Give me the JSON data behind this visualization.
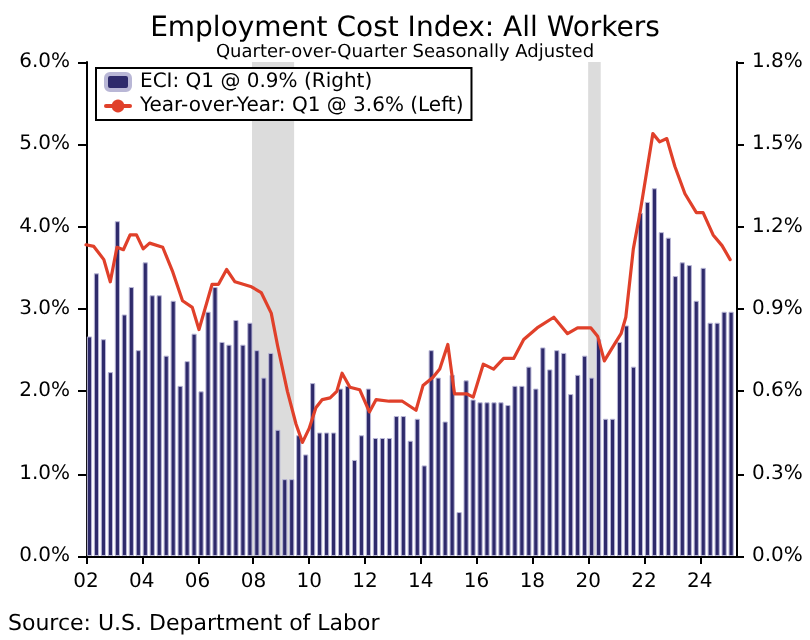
{
  "chart_data": {
    "type": "bar",
    "title": "Employment Cost Index: All Workers",
    "subtitle": "Quarter-over-Quarter Seasonally Adjusted",
    "annotations": [
      "Source: U.S. Department of Labor"
    ],
    "x": [
      2002.125,
      2002.375,
      2002.625,
      2002.875,
      2003.125,
      2003.375,
      2003.625,
      2003.875,
      2004.125,
      2004.375,
      2004.625,
      2004.875,
      2005.125,
      2005.375,
      2005.625,
      2005.875,
      2006.125,
      2006.375,
      2006.625,
      2006.875,
      2007.125,
      2007.375,
      2007.625,
      2007.875,
      2008.125,
      2008.375,
      2008.625,
      2008.875,
      2009.125,
      2009.375,
      2009.625,
      2009.875,
      2010.125,
      2010.375,
      2010.625,
      2010.875,
      2011.125,
      2011.375,
      2011.625,
      2011.875,
      2012.125,
      2012.375,
      2012.625,
      2012.875,
      2013.125,
      2013.375,
      2013.625,
      2013.875,
      2014.125,
      2014.375,
      2014.625,
      2014.875,
      2015.125,
      2015.375,
      2015.625,
      2015.875,
      2016.125,
      2016.375,
      2016.625,
      2016.875,
      2017.125,
      2017.375,
      2017.625,
      2017.875,
      2018.125,
      2018.375,
      2018.625,
      2018.875,
      2019.125,
      2019.375,
      2019.625,
      2019.875,
      2020.125,
      2020.375,
      2020.625,
      2020.875,
      2021.125,
      2021.375,
      2021.625,
      2021.875,
      2022.125,
      2022.375,
      2022.625,
      2022.875,
      2023.125,
      2023.375,
      2023.625,
      2023.875,
      2024.125,
      2024.375,
      2024.625,
      2024.875,
      2025.125
    ],
    "series": [
      {
        "name": "ECI: Q1 @ 0.9% (Right)",
        "axis": "y2",
        "color": "#2e2a6b",
        "values": [
          0.8,
          1.03,
          0.79,
          0.67,
          1.22,
          0.88,
          0.98,
          0.75,
          1.07,
          0.95,
          0.95,
          0.73,
          0.93,
          0.62,
          0.71,
          0.81,
          0.6,
          0.89,
          0.98,
          0.78,
          0.77,
          0.86,
          0.77,
          0.85,
          0.75,
          0.65,
          0.74,
          0.46,
          0.28,
          0.28,
          0.44,
          0.37,
          0.63,
          0.45,
          0.45,
          0.45,
          0.61,
          0.62,
          0.35,
          0.44,
          0.61,
          0.43,
          0.43,
          0.43,
          0.51,
          0.51,
          0.42,
          0.5,
          0.33,
          0.75,
          0.65,
          0.49,
          0.66,
          0.16,
          0.64,
          0.57,
          0.56,
          0.56,
          0.56,
          0.56,
          0.55,
          0.62,
          0.62,
          0.69,
          0.61,
          0.76,
          0.68,
          0.75,
          0.74,
          0.59,
          0.66,
          0.73,
          0.65,
          0.79,
          0.5,
          0.5,
          0.78,
          0.84,
          0.69,
          1.25,
          1.29,
          1.34,
          1.18,
          1.16,
          1.02,
          1.07,
          1.06,
          0.93,
          1.05,
          0.85,
          0.85,
          0.89,
          0.89
        ]
      },
      {
        "name": "Year-over-Year: Q1 @ 3.6% (Left)",
        "type": "line",
        "color": "#e0402a",
        "x": [
          2002.0,
          2002.28,
          2002.64,
          2002.87,
          2003.11,
          2003.34,
          2003.58,
          2003.81,
          2004.05,
          2004.28,
          2004.75,
          2005.11,
          2005.46,
          2005.81,
          2006.05,
          2006.52,
          2006.75,
          2007.04,
          2007.34,
          2007.93,
          2008.28,
          2008.64,
          2008.87,
          2009.22,
          2009.53,
          2009.76,
          2010.0,
          2010.24,
          2010.47,
          2010.75,
          2010.99,
          2011.18,
          2011.46,
          2011.81,
          2012.16,
          2012.4,
          2012.87,
          2013.34,
          2013.83,
          2014.08,
          2014.44,
          2014.68,
          2014.97,
          2015.21,
          2015.64,
          2015.88,
          2016.24,
          2016.61,
          2016.97,
          2017.33,
          2017.69,
          2018.17,
          2018.77,
          2019.26,
          2019.62,
          2020.1,
          2020.34,
          2020.58,
          2020.94,
          2021.18,
          2021.35,
          2021.62,
          2021.86,
          2022.1,
          2022.32,
          2022.56,
          2022.82,
          2023.11,
          2023.47,
          2023.88,
          2024.12,
          2024.48,
          2024.8,
          2025.09
        ],
        "values": [
          3.78,
          3.76,
          3.6,
          3.33,
          3.75,
          3.72,
          3.9,
          3.9,
          3.73,
          3.8,
          3.75,
          3.45,
          3.1,
          3.02,
          2.75,
          3.3,
          3.3,
          3.48,
          3.33,
          3.27,
          3.2,
          2.95,
          2.55,
          2.0,
          1.6,
          1.38,
          1.55,
          1.8,
          1.9,
          1.92,
          2.0,
          2.22,
          2.05,
          2.02,
          1.75,
          1.9,
          1.88,
          1.88,
          1.77,
          2.07,
          2.17,
          2.27,
          2.57,
          1.97,
          1.97,
          1.93,
          2.33,
          2.27,
          2.4,
          2.4,
          2.63,
          2.77,
          2.9,
          2.7,
          2.77,
          2.77,
          2.67,
          2.37,
          2.57,
          2.7,
          2.9,
          3.73,
          4.17,
          4.67,
          5.13,
          5.03,
          5.07,
          4.73,
          4.4,
          4.17,
          4.17,
          3.9,
          3.77,
          3.6
        ]
      }
    ],
    "xlim": [
      2002,
      2025.3
    ],
    "xticks": [
      {
        "value": 2002,
        "label": "02"
      },
      {
        "value": 2004,
        "label": "04"
      },
      {
        "value": 2006,
        "label": "06"
      },
      {
        "value": 2008,
        "label": "08"
      },
      {
        "value": 2010,
        "label": "10"
      },
      {
        "value": 2012,
        "label": "12"
      },
      {
        "value": 2014,
        "label": "14"
      },
      {
        "value": 2016,
        "label": "16"
      },
      {
        "value": 2018,
        "label": "18"
      },
      {
        "value": 2020,
        "label": "20"
      },
      {
        "value": 2022,
        "label": "22"
      },
      {
        "value": 2024,
        "label": "24"
      }
    ],
    "ylim": [
      0,
      6
    ],
    "yticks": [
      {
        "value": 0,
        "label": "0.0%"
      },
      {
        "value": 1,
        "label": "1.0%"
      },
      {
        "value": 2,
        "label": "2.0%"
      },
      {
        "value": 3,
        "label": "3.0%"
      },
      {
        "value": 4,
        "label": "4.0%"
      },
      {
        "value": 5,
        "label": "5.0%"
      },
      {
        "value": 6,
        "label": "6.0%"
      }
    ],
    "y2lim": [
      0,
      1.8
    ],
    "y2ticks": [
      {
        "value": 0,
        "label": "0.0%"
      },
      {
        "value": 0.3,
        "label": "0.3%"
      },
      {
        "value": 0.6,
        "label": "0.6%"
      },
      {
        "value": 0.9,
        "label": "0.9%"
      },
      {
        "value": 1.2,
        "label": "1.2%"
      },
      {
        "value": 1.5,
        "label": "1.5%"
      },
      {
        "value": 1.8,
        "label": "1.8%"
      }
    ],
    "bands": [
      {
        "axis": "x",
        "from": 2007.95,
        "to": 2009.46,
        "color": "#dcdcdc"
      },
      {
        "axis": "x",
        "from": 2020.0,
        "to": 2020.45,
        "color": "#dcdcdc"
      }
    ],
    "grid": false,
    "legend": "top left",
    "marker": "none",
    "line_style": "solid"
  }
}
